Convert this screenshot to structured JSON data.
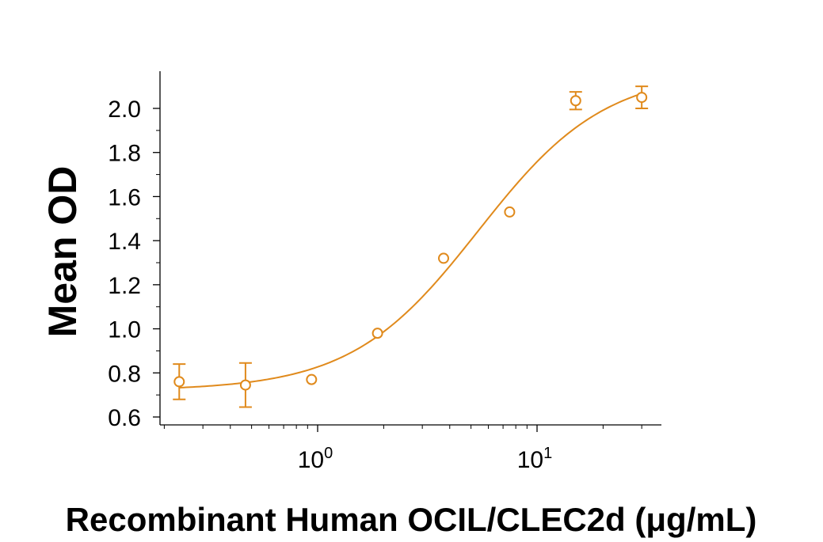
{
  "chart_data": {
    "type": "scatter",
    "title": "",
    "xlabel": "Recombinant Human OCIL/CLEC2d (μg/mL)",
    "ylabel": "Mean OD",
    "x_scale": "log",
    "xlim": [
      0.2,
      35
    ],
    "ylim": [
      0.6,
      2.1
    ],
    "x_ticks": [
      {
        "value": 1,
        "base": "10",
        "exp": "0"
      },
      {
        "value": 10,
        "base": "10",
        "exp": "1"
      }
    ],
    "y_ticks": [
      {
        "value": 0.6,
        "label": "0.6"
      },
      {
        "value": 0.8,
        "label": "0.8"
      },
      {
        "value": 1.0,
        "label": "1.0"
      },
      {
        "value": 1.2,
        "label": "1.2"
      },
      {
        "value": 1.4,
        "label": "1.4"
      },
      {
        "value": 1.6,
        "label": "1.6"
      },
      {
        "value": 1.8,
        "label": "1.8"
      },
      {
        "value": 2.0,
        "label": "2.0"
      }
    ],
    "grid": false,
    "legend": "none",
    "color": "#e08a1c",
    "series": [
      {
        "points": [
          {
            "x": 0.234,
            "y": 0.76,
            "err": 0.08
          },
          {
            "x": 0.469,
            "y": 0.745,
            "err": 0.1
          },
          {
            "x": 0.938,
            "y": 0.77,
            "err": 0
          },
          {
            "x": 1.875,
            "y": 0.98,
            "err": 0
          },
          {
            "x": 3.75,
            "y": 1.32,
            "err": 0
          },
          {
            "x": 7.5,
            "y": 1.53,
            "err": 0
          },
          {
            "x": 15,
            "y": 2.035,
            "err": 0.04
          },
          {
            "x": 30,
            "y": 2.05,
            "err": 0.05
          }
        ]
      }
    ],
    "fit": {
      "model": "4PL",
      "bottom": 0.72,
      "top": 2.17,
      "ec50": 5.4,
      "hill": 1.5
    }
  }
}
